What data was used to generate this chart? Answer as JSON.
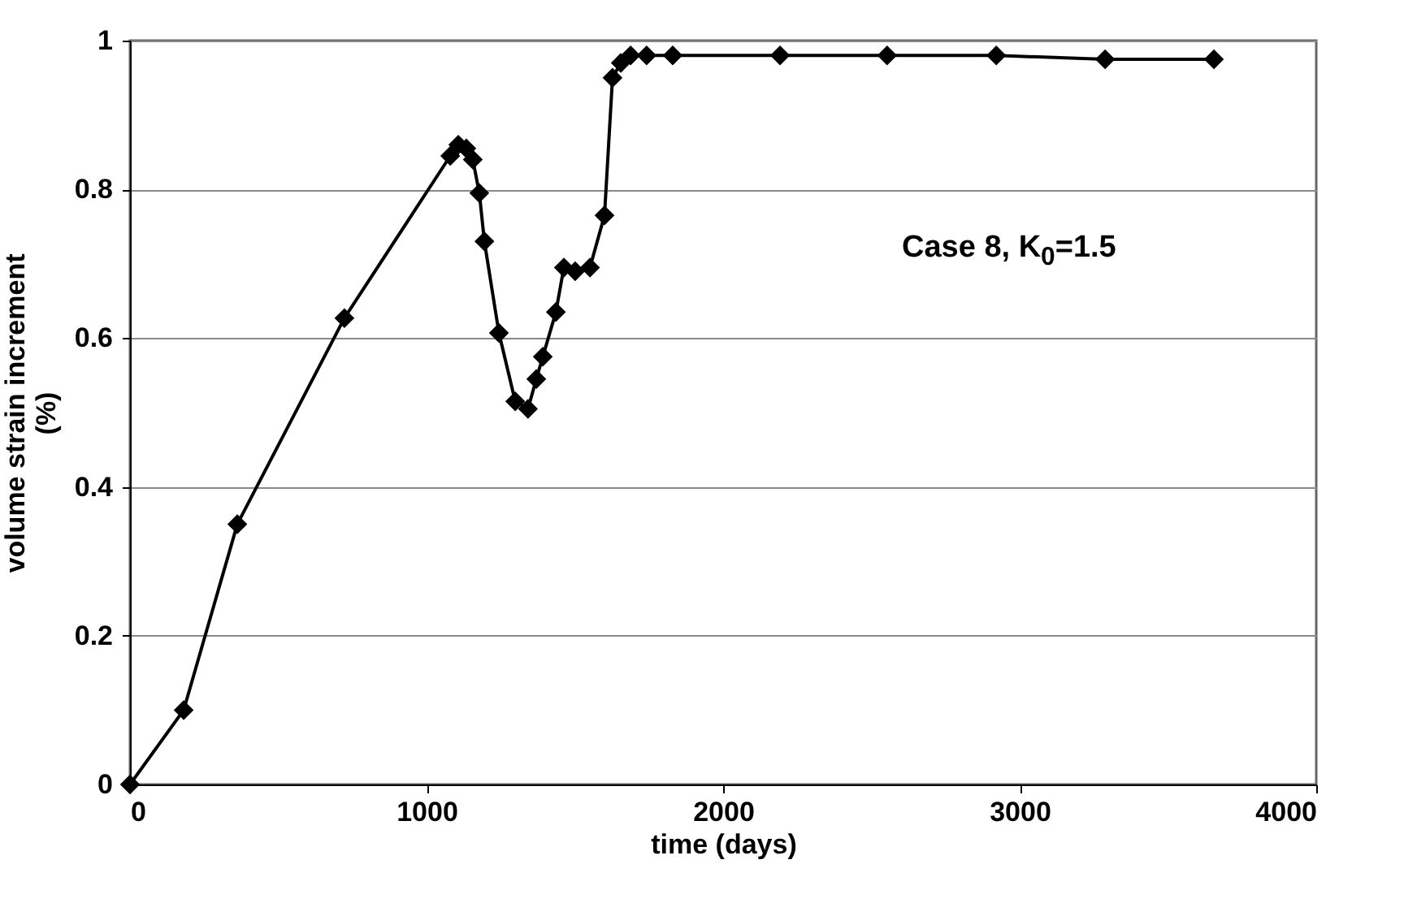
{
  "chart_data": {
    "type": "line",
    "xlabel": "time (days)",
    "ylabel": "volume strain increment (%)",
    "annotations": [
      "Case 8, K$_{0}$=1.5"
    ],
    "x": [
      0,
      181,
      362,
      723,
      1080,
      1107,
      1134,
      1156,
      1178,
      1195,
      1244,
      1299,
      1342,
      1370,
      1392,
      1436,
      1463,
      1501,
      1551,
      1600,
      1627,
      1655,
      1688,
      1742,
      1830,
      2192,
      2553,
      2921,
      3288,
      3655
    ],
    "series": [
      {
        "color": "#000000",
        "values": [
          0,
          0.1,
          0.35,
          0.627,
          0.845,
          0.86,
          0.855,
          0.84,
          0.795,
          0.73,
          0.607,
          0.515,
          0.505,
          0.545,
          0.575,
          0.635,
          0.695,
          0.69,
          0.695,
          0.765,
          0.95,
          0.97,
          0.98,
          0.98,
          0.98,
          0.98,
          0.98,
          0.98,
          0.975,
          0.975
        ]
      }
    ],
    "xlim": [
      0,
      4000
    ],
    "xticks": [
      0,
      1000,
      2000,
      3000,
      4000
    ],
    "ylim": [
      0,
      1
    ],
    "yticks": [
      0,
      0.2,
      0.4,
      0.6,
      0.8,
      1
    ],
    "grid": "y",
    "marker": "diamond",
    "line_style": "solid",
    "legend": false
  }
}
